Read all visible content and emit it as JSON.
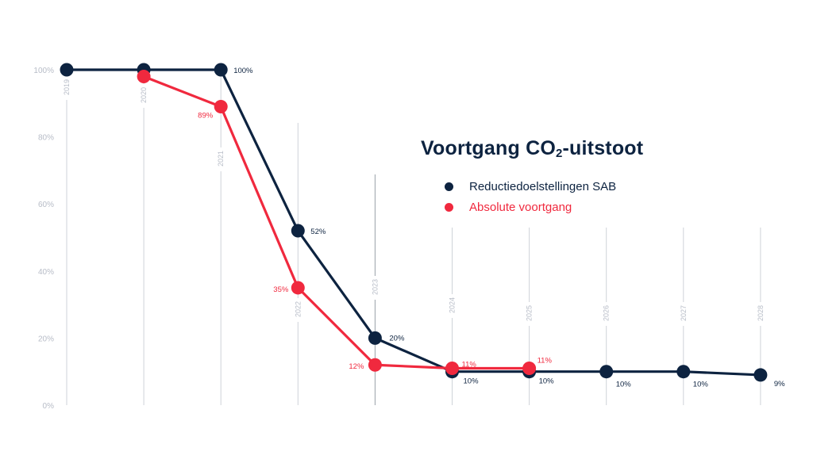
{
  "chart_data": {
    "type": "line",
    "title": {
      "prefix": "Voortgang CO",
      "sub": "2",
      "suffix": "-uitstoot"
    },
    "xlabel": "",
    "ylabel": "",
    "ylim": [
      0,
      100
    ],
    "y_ticks": [
      "0%",
      "20%",
      "40%",
      "60%",
      "80%",
      "100%"
    ],
    "y_tick_values": [
      0,
      20,
      40,
      60,
      80,
      100
    ],
    "categories": [
      "2019",
      "2020",
      "2021",
      "2022",
      "2023",
      "2024",
      "2025",
      "2026",
      "2027",
      "2028"
    ],
    "series": [
      {
        "name": "Reductiedoelstellingen SAB",
        "color": "#0d2340",
        "values": [
          100,
          100,
          100,
          52,
          20,
          10,
          10,
          10,
          10,
          9
        ],
        "labels": [
          "",
          "",
          "100%",
          "52%",
          "20%",
          "10%",
          "10%",
          "10%",
          "10%",
          "9%"
        ]
      },
      {
        "name": "Absolute voortgang",
        "color": "#f0293e",
        "values": [
          null,
          98,
          89,
          35,
          12,
          11,
          11,
          null,
          null,
          null
        ],
        "labels": [
          "",
          "",
          "89%",
          "35%",
          "12%",
          "11%",
          "11%",
          "",
          "",
          ""
        ]
      }
    ],
    "grid": true,
    "legend_position": "right"
  }
}
